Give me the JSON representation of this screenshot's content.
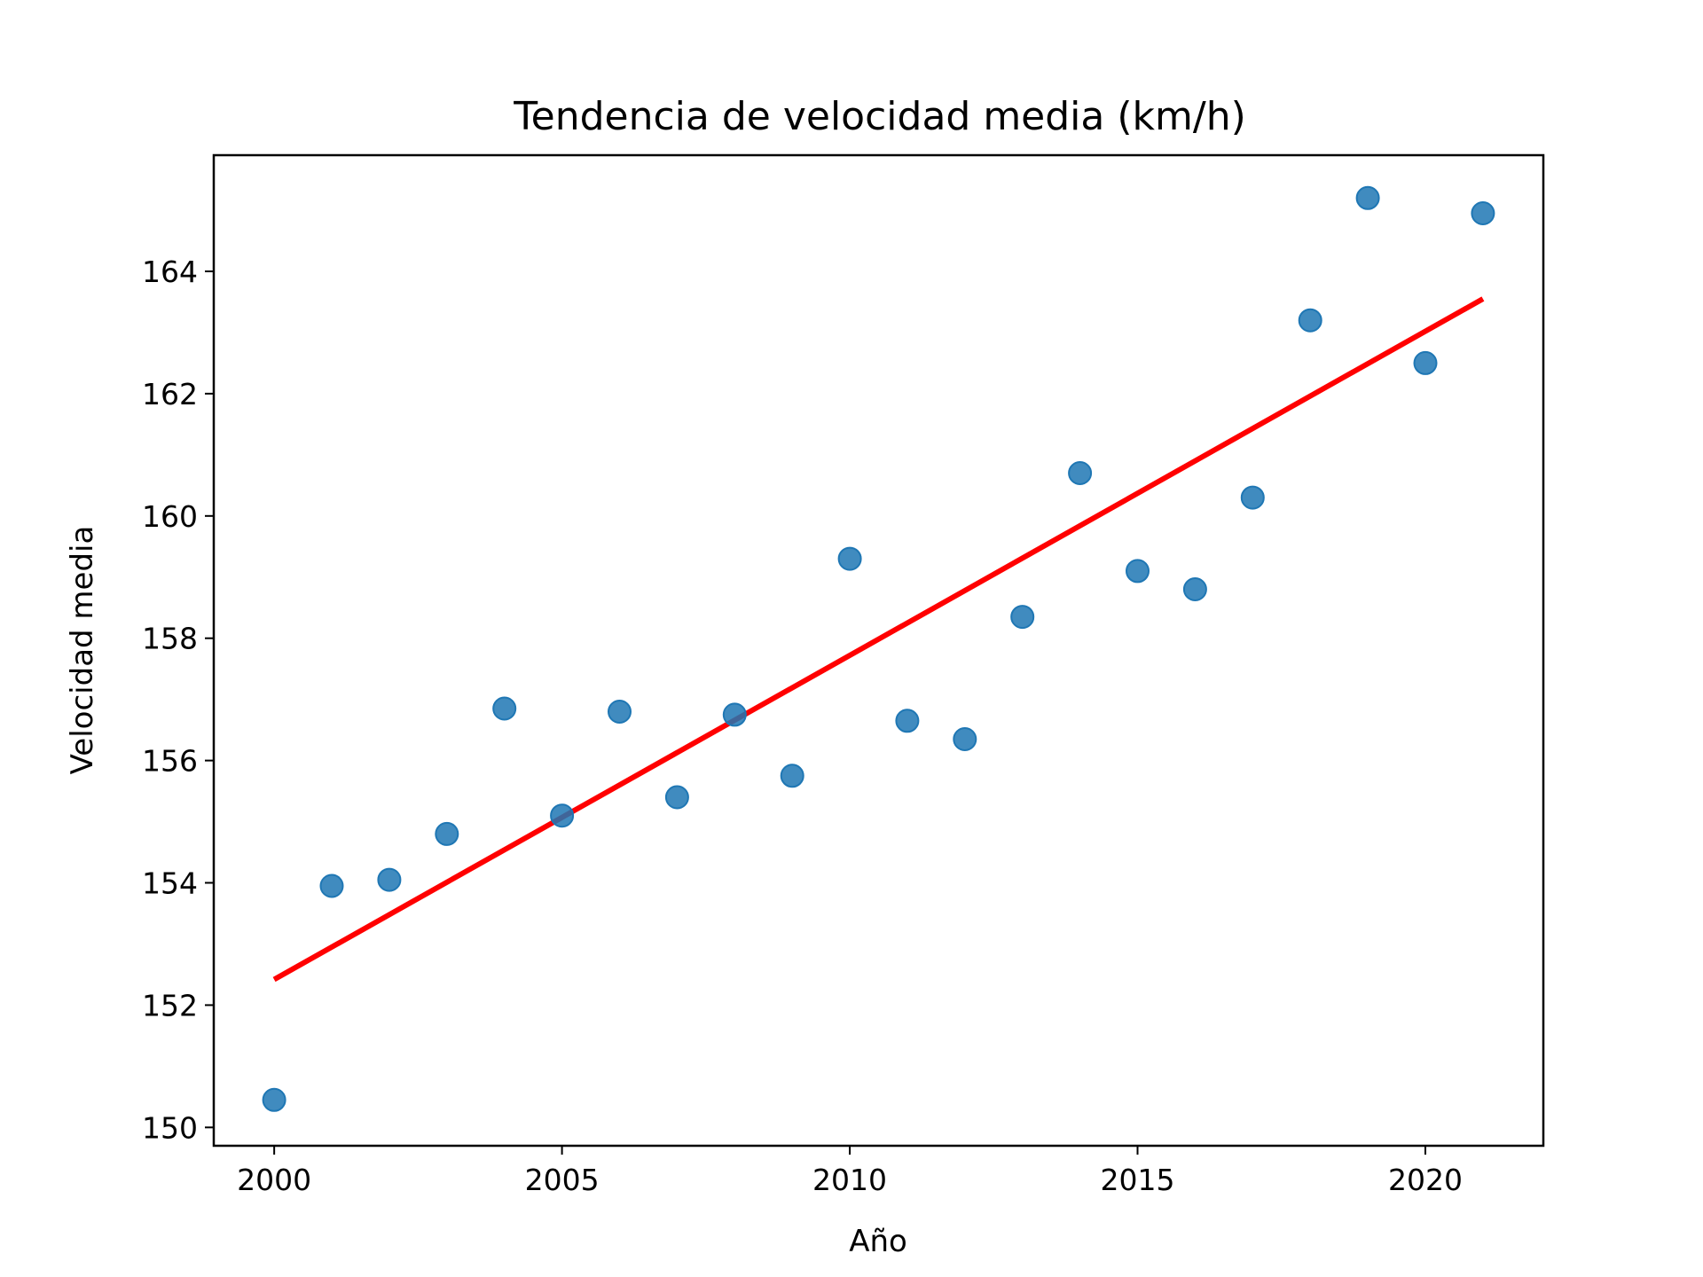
{
  "chart_data": {
    "type": "scatter",
    "title": "Tendencia de velocidad media (km/h)",
    "xlabel": "Año",
    "ylabel": "Velocidad media",
    "xlim": [
      1998.95,
      2022.05
    ],
    "ylim": [
      149.7,
      165.9
    ],
    "xticks": [
      2000,
      2005,
      2010,
      2015,
      2020
    ],
    "yticks": [
      150,
      152,
      154,
      156,
      158,
      160,
      162,
      164
    ],
    "grid": false,
    "series": [
      {
        "kind": "points",
        "color": "#1f77b4",
        "x": [
          2000,
          2001,
          2002,
          2003,
          2004,
          2005,
          2006,
          2007,
          2008,
          2009,
          2010,
          2011,
          2012,
          2013,
          2014,
          2015,
          2016,
          2017,
          2018,
          2019,
          2020,
          2021
        ],
        "y": [
          150.45,
          153.95,
          154.05,
          154.8,
          156.85,
          155.1,
          156.8,
          155.4,
          156.75,
          155.75,
          159.3,
          156.65,
          156.35,
          158.35,
          160.7,
          159.1,
          158.8,
          160.3,
          163.2,
          165.2,
          162.5,
          164.95
        ]
      },
      {
        "kind": "trend-line",
        "color": "#ff0000",
        "x": [
          2000,
          2021
        ],
        "y": [
          152.42,
          163.55
        ]
      }
    ]
  }
}
